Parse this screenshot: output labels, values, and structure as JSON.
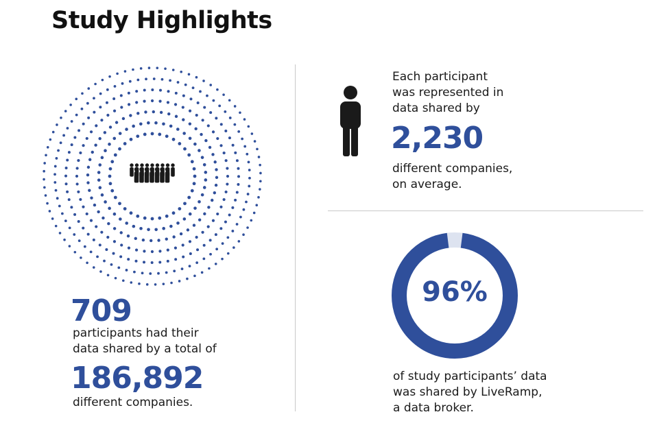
{
  "title": "Study Highlights",
  "colors": {
    "accent": "#2f4f9b",
    "accent_light": "#dde3f0",
    "text": "#1a1a1a",
    "divider": "#c8c8c8"
  },
  "icons": {
    "crowd": "crowd-icon",
    "person": "person-icon"
  },
  "left": {
    "participants": "709",
    "line1": "participants had their",
    "line2": "data shared by a total of",
    "companies_total": "186,892",
    "line3": "different companies."
  },
  "right_top": {
    "line1": "Each participant",
    "line2": "was represented in",
    "line3": "data shared by",
    "avg_companies": "2,230",
    "line4": "different companies,",
    "line5": "on average."
  },
  "right_bottom": {
    "percent_label": "96%",
    "percent_value": 0.96,
    "line1": "of study participants’ data",
    "line2": "was shared by LiveRamp,",
    "line3": "a data broker."
  }
}
